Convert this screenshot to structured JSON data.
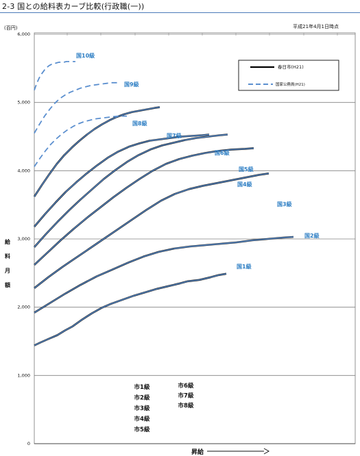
{
  "page": {
    "title": "2-3 国との給料表カーブ比較(行政職(一))"
  },
  "chart_data": {
    "type": "line",
    "ylabel_unit": "(百円)",
    "date_note": "平成21年4月1日時点",
    "ylim": [
      0,
      6000
    ],
    "y_ticks": [
      0,
      1000,
      2000,
      3000,
      4000,
      5000,
      6000
    ],
    "y_tick_labels": [
      "0",
      "1,000",
      "2,000",
      "3,000",
      "4,000",
      "5,000",
      "6,000"
    ],
    "ylabel": "給料月額",
    "xlabel": "昇給",
    "xlim": [
      0,
      100
    ],
    "grid": true,
    "legend": {
      "position": "top-right",
      "entries": [
        {
          "label": "春日市(H21)",
          "style": "solid",
          "color": "#000000"
        },
        {
          "label": "国家公務員(H21)",
          "style": "dashed",
          "color": "#5b8fcf"
        }
      ]
    },
    "city_series_labels_left": [
      "市1級",
      "市2級",
      "市3級",
      "市4級",
      "市5級"
    ],
    "city_series_labels_right": [
      "市6級",
      "市7級",
      "市8級"
    ],
    "colors": {
      "national": "#5b8fcf",
      "city": "#000000",
      "label": "#2f7fc4",
      "grid": "#808080"
    },
    "series": [
      {
        "name": "国1級",
        "label_style": "plain",
        "x": [
          0,
          3,
          7,
          12,
          16,
          20,
          25,
          30,
          35,
          40,
          46,
          52,
          58,
          64,
          70,
          76,
          80,
          86,
          92,
          96,
          100
        ],
        "y": [
          1440,
          1480,
          1530,
          1590,
          1660,
          1720,
          1820,
          1910,
          1990,
          2050,
          2110,
          2170,
          2220,
          2270,
          2310,
          2350,
          2380,
          2400,
          2440,
          2470,
          2490
        ]
      },
      {
        "name": "国2級",
        "label_style": "plain",
        "x": [
          0,
          6,
          12,
          18,
          24,
          30,
          36,
          42,
          48,
          54,
          60,
          66,
          72,
          78,
          84,
          90,
          96,
          100
        ],
        "y": [
          1920,
          2060,
          2200,
          2330,
          2450,
          2550,
          2650,
          2740,
          2810,
          2860,
          2890,
          2910,
          2930,
          2950,
          2980,
          3000,
          3020,
          3030
        ]
      },
      {
        "name": "国3級",
        "label_style": "plain",
        "x": [
          0,
          6,
          12,
          18,
          24,
          30,
          36,
          42,
          48,
          54,
          60,
          66,
          72,
          78,
          84,
          90,
          96,
          100
        ],
        "y": [
          2280,
          2440,
          2590,
          2730,
          2870,
          3010,
          3150,
          3290,
          3430,
          3560,
          3660,
          3730,
          3780,
          3820,
          3860,
          3900,
          3940,
          3960
        ]
      },
      {
        "name": "国4級",
        "label_style": "plain",
        "x": [
          0,
          6,
          12,
          18,
          24,
          30,
          36,
          42,
          48,
          54,
          60,
          66,
          72,
          78,
          84,
          90,
          96,
          100
        ],
        "y": [
          2620,
          2800,
          2980,
          3150,
          3310,
          3460,
          3610,
          3750,
          3880,
          4000,
          4100,
          4170,
          4220,
          4260,
          4290,
          4310,
          4320,
          4330
        ]
      },
      {
        "name": "国5級",
        "label_style": "plain",
        "x": [
          0,
          6,
          12,
          18,
          24,
          30,
          36,
          42,
          48,
          54,
          60,
          66,
          72,
          78,
          84,
          90,
          96,
          100
        ],
        "y": [
          2880,
          3070,
          3250,
          3420,
          3580,
          3730,
          3880,
          4010,
          4130,
          4230,
          4310,
          4370,
          4410,
          4450,
          4480,
          4500,
          4520,
          4530
        ]
      },
      {
        "name": "国6級",
        "label_style": "plain",
        "x": [
          0,
          6,
          12,
          18,
          24,
          30,
          36,
          42,
          48,
          54,
          60,
          66,
          72,
          78,
          84,
          90,
          96,
          100
        ],
        "y": [
          3180,
          3360,
          3530,
          3690,
          3830,
          3960,
          4080,
          4190,
          4280,
          4350,
          4400,
          4440,
          4460,
          4480,
          4500,
          4510,
          4520,
          4530
        ]
      },
      {
        "name": "国7級",
        "label_style": "plain",
        "x": [
          0,
          6,
          12,
          18,
          24,
          30,
          36,
          42,
          48,
          54,
          60,
          66,
          72,
          78,
          84,
          90,
          96,
          100
        ],
        "y": [
          3620,
          3790,
          3950,
          4100,
          4230,
          4340,
          4440,
          4530,
          4610,
          4680,
          4740,
          4790,
          4830,
          4860,
          4880,
          4900,
          4920,
          4930
        ]
      },
      {
        "name": "国8級",
        "label_style": "plain",
        "x": [
          0,
          6,
          12,
          18,
          24,
          30,
          36,
          42,
          48,
          54,
          60,
          66,
          72,
          78,
          84,
          90,
          96,
          100
        ],
        "y": [
          4060,
          4180,
          4290,
          4390,
          4470,
          4540,
          4600,
          4650,
          4690,
          4720,
          4740,
          4760,
          4770,
          4780,
          4790,
          4800,
          4800,
          4800
        ]
      },
      {
        "name": "国9級",
        "label_style": "plain",
        "x": [
          0,
          6,
          12,
          18,
          24,
          30,
          36,
          42,
          48,
          54,
          60,
          66,
          72,
          78,
          84,
          90,
          96,
          100
        ],
        "y": [
          4550,
          4680,
          4800,
          4900,
          4990,
          5060,
          5110,
          5150,
          5180,
          5210,
          5230,
          5250,
          5260,
          5270,
          5280,
          5290,
          5290,
          5300
        ]
      },
      {
        "name": "国10級",
        "label_style": "plain",
        "x": [
          0,
          6,
          12,
          18,
          24,
          30,
          36,
          42,
          48,
          54,
          60,
          66,
          72,
          78,
          84,
          90,
          96,
          100
        ],
        "y": [
          5180,
          5280,
          5360,
          5420,
          5470,
          5510,
          5540,
          5560,
          5570,
          5580,
          5590,
          5590,
          5590,
          5600,
          5600,
          5600,
          5600,
          5600
        ]
      }
    ]
  }
}
